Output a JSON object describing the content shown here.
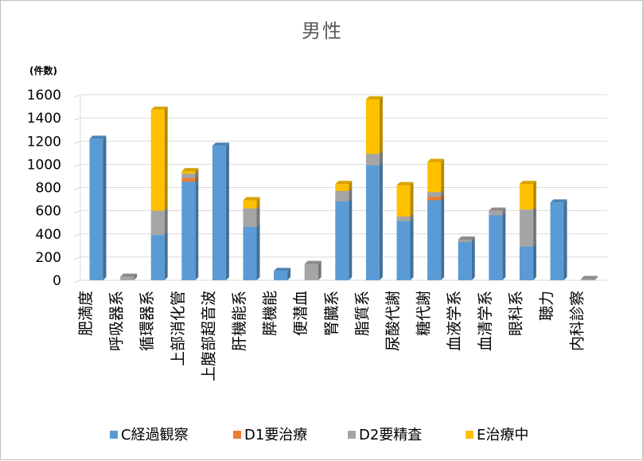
{
  "chart_data": {
    "type": "bar",
    "stacked": true,
    "three_d": true,
    "title": "男性",
    "ylabel": "(件数)",
    "ylim": [
      0,
      1600
    ],
    "yticks": [
      0,
      200,
      400,
      600,
      800,
      1000,
      1200,
      1400,
      1600
    ],
    "grid": true,
    "legend_position": "bottom",
    "categories": [
      "肥満度",
      "呼吸器系",
      "循環器系",
      "上部消化管",
      "上腹部超音波",
      "肝機能系",
      "膵機能",
      "便潜血",
      "腎臓系",
      "脂質系",
      "尿酸代謝",
      "糖代謝",
      "血液学系",
      "血清学系",
      "眼科系",
      "聴力",
      "内科診察"
    ],
    "series": [
      {
        "name": "C経過観察",
        "color": "#5b9bd5",
        "values": [
          1220,
          0,
          390,
          850,
          1160,
          460,
          80,
          0,
          680,
          990,
          510,
          690,
          330,
          560,
          290,
          670,
          0
        ]
      },
      {
        "name": "D1要治療",
        "color": "#ed7d31",
        "values": [
          0,
          0,
          0,
          30,
          0,
          0,
          0,
          0,
          0,
          0,
          0,
          30,
          0,
          0,
          0,
          0,
          0
        ]
      },
      {
        "name": "D2要精査",
        "color": "#a5a5a5",
        "values": [
          0,
          30,
          210,
          40,
          0,
          160,
          0,
          140,
          90,
          100,
          40,
          40,
          20,
          40,
          320,
          0,
          10
        ]
      },
      {
        "name": "E治療中",
        "color": "#ffc000",
        "values": [
          0,
          0,
          870,
          20,
          0,
          70,
          0,
          0,
          60,
          470,
          270,
          260,
          0,
          0,
          220,
          0,
          0
        ]
      }
    ]
  }
}
